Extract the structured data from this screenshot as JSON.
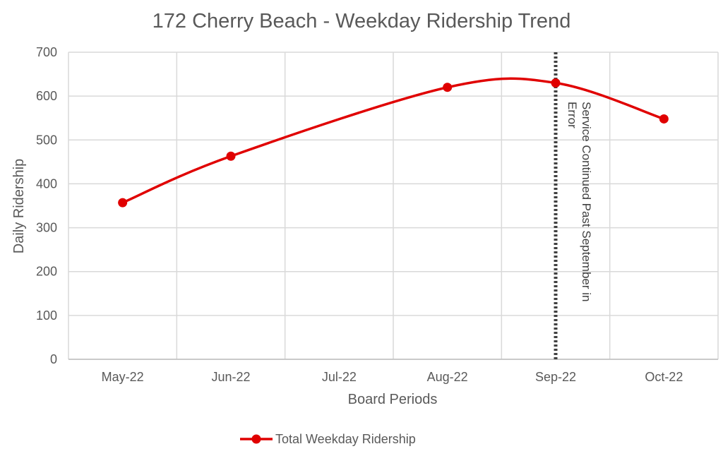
{
  "chart_data": {
    "type": "line",
    "title": "172 Cherry Beach - Weekday Ridership Trend",
    "xlabel": "Board Periods",
    "ylabel": "Daily Ridership",
    "categories": [
      "May-22",
      "Jun-22",
      "Jul-22",
      "Aug-22",
      "Sep-22",
      "Oct-22"
    ],
    "ylim": [
      0,
      700
    ],
    "yticks": [
      0,
      100,
      200,
      300,
      400,
      500,
      600,
      700
    ],
    "grid": true,
    "legend_position": "bottom",
    "series": [
      {
        "name": "Total Weekday Ridership",
        "color": "#e00000",
        "smooth": true,
        "points": [
          {
            "category": "May-22",
            "value": 357
          },
          {
            "category": "Jun-22",
            "value": 463
          },
          {
            "category": "Aug-22",
            "value": 620
          },
          {
            "category": "Sep-22",
            "value": 630
          },
          {
            "category": "Oct-22",
            "value": 548
          }
        ]
      }
    ],
    "annotations": [
      {
        "type": "vertical-line",
        "category": "Sep-22",
        "style": "dotted",
        "color": "#404040",
        "lines": [
          "Service Continued Past September in",
          "Error"
        ]
      }
    ]
  }
}
